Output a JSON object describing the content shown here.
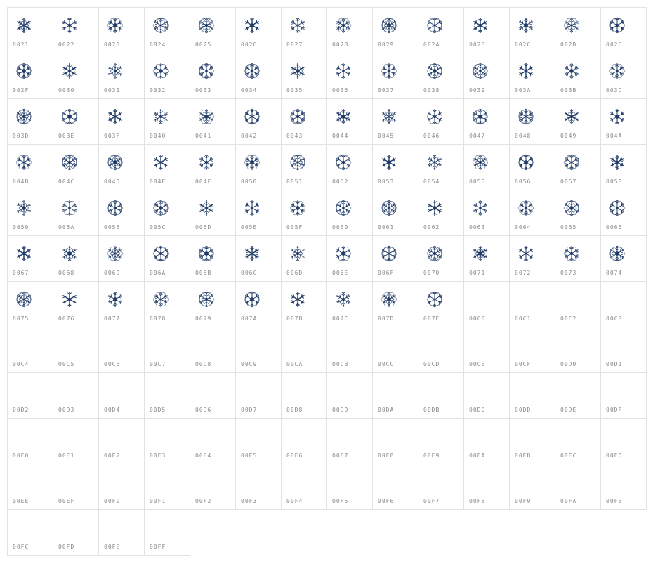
{
  "glyph_color": "#1f3a66",
  "glyph_icon": "snowflake-icon",
  "glyph_cells": [
    "0021",
    "0022",
    "0023",
    "0024",
    "0025",
    "0026",
    "0027",
    "0028",
    "0029",
    "002A",
    "002B",
    "002C",
    "002D",
    "002E",
    "002F",
    "0030",
    "0031",
    "0032",
    "0033",
    "0034",
    "0035",
    "0036",
    "0037",
    "0038",
    "0039",
    "003A",
    "003B",
    "003C",
    "003D",
    "003E",
    "003F",
    "0040",
    "0041",
    "0042",
    "0043",
    "0044",
    "0045",
    "0046",
    "0047",
    "0048",
    "0049",
    "004A",
    "004B",
    "004C",
    "004D",
    "004E",
    "004F",
    "0050",
    "0051",
    "0052",
    "0053",
    "0054",
    "0055",
    "0056",
    "0057",
    "0058",
    "0059",
    "005A",
    "005B",
    "005C",
    "005D",
    "005E",
    "005F",
    "0060",
    "0061",
    "0062",
    "0063",
    "0064",
    "0065",
    "0066",
    "0067",
    "0068",
    "0069",
    "006A",
    "006B",
    "006C",
    "006D",
    "006E",
    "006F",
    "0070",
    "0071",
    "0072",
    "0073",
    "0074",
    "0075",
    "0076",
    "0077",
    "0078",
    "0079",
    "007A",
    "007B",
    "007C",
    "007D",
    "007E"
  ],
  "empty_cells": [
    "00C0",
    "00C1",
    "00C2",
    "00C3",
    "00C4",
    "00C5",
    "00C6",
    "00C7",
    "00C8",
    "00C9",
    "00CA",
    "00CB",
    "00CC",
    "00CD",
    "00CE",
    "00CF",
    "00D0",
    "00D1",
    "00D2",
    "00D3",
    "00D4",
    "00D5",
    "00D6",
    "00D7",
    "00D8",
    "00D9",
    "00DA",
    "00DB",
    "00DC",
    "00DD",
    "00DE",
    "00DF",
    "00E0",
    "00E1",
    "00E2",
    "00E3",
    "00E4",
    "00E5",
    "00E6",
    "00E7",
    "00E8",
    "00E9",
    "00EA",
    "00EB",
    "00EC",
    "00ED",
    "00EE",
    "00EF",
    "00F0",
    "00F1",
    "00F2",
    "00F3",
    "00F4",
    "00F5",
    "00F6",
    "00F7",
    "00F8",
    "00F9",
    "00FA",
    "00FB",
    "00FC",
    "00FD",
    "00FE",
    "00FF"
  ]
}
